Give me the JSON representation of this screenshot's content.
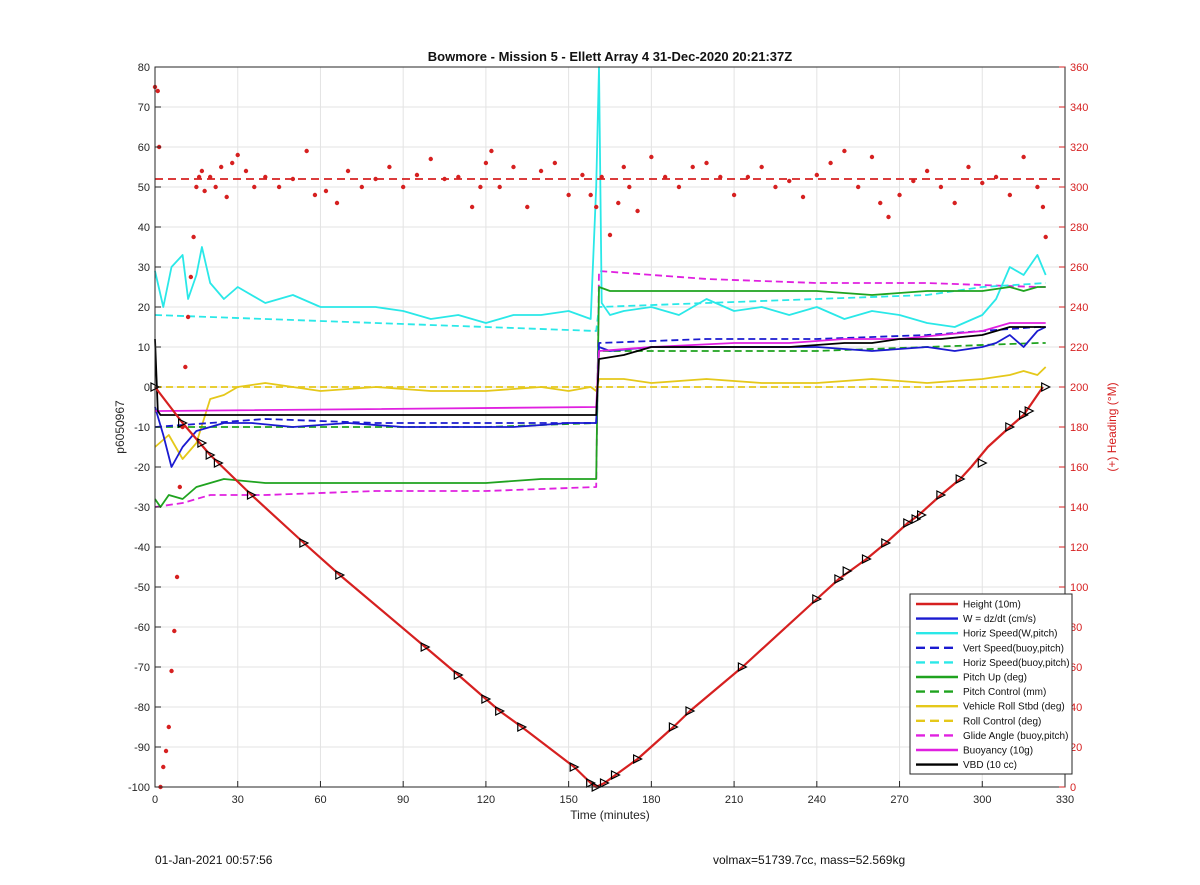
{
  "footer": {
    "timestamp": "01-Jan-2021 00:57:56",
    "vol_mass": "volmax=51739.7cc, mass=52.569kg"
  },
  "chart_data": {
    "type": "line",
    "title": "Bowmore - Mission 5 - Ellett Array 4 31-Dec-2020 20:21:37Z",
    "xlabel": "Time (minutes)",
    "ylabel": "p6050967",
    "y2label": "(+) Heading (°M)",
    "xlim": [
      0,
      330
    ],
    "ylim": [
      -100,
      80
    ],
    "y2lim": [
      0,
      360
    ],
    "xticks": [
      "0",
      "30",
      "60",
      "90",
      "120",
      "150",
      "180",
      "210",
      "240",
      "270",
      "300",
      "330"
    ],
    "yticks": [
      "80",
      "70",
      "60",
      "50",
      "40",
      "30",
      "20",
      "10",
      "0",
      "-10",
      "-20",
      "-30",
      "-40",
      "-50",
      "-60",
      "-70",
      "-80",
      "-90",
      "-100"
    ],
    "y2ticks": [
      "360",
      "340",
      "320",
      "300",
      "280",
      "260",
      "240",
      "220",
      "200",
      "180",
      "160",
      "140",
      "120",
      "100",
      "80",
      "60",
      "40",
      "20",
      "0"
    ],
    "grid": true,
    "legend_position": "bottom-right",
    "colors": {
      "red": "#d62020",
      "blue": "#1a1ad0",
      "cyan": "#2ae8e8",
      "green": "#1fa31f",
      "yellow": "#e5c81a",
      "magenta": "#e020e0",
      "black": "#000000"
    },
    "series": [
      {
        "name": "Height (10m)",
        "color": "#d62020",
        "style": "solid",
        "x": [
          0,
          10,
          20,
          35,
          54,
          67,
          98,
          110,
          120,
          125,
          133,
          152,
          158,
          160,
          163,
          167,
          175,
          188,
          194,
          213,
          240,
          248,
          258,
          265,
          273,
          277,
          285,
          292,
          296,
          302,
          310,
          315,
          318,
          322
        ],
        "y": [
          0,
          -9,
          -17,
          -27,
          -39,
          -47,
          -65,
          -72,
          -78,
          -81,
          -85,
          -95,
          -99,
          -100,
          -99,
          -97,
          -93,
          -85,
          -81,
          -70,
          -53,
          -48,
          -43,
          -39,
          -34,
          -32,
          -27,
          -23,
          -20,
          -15,
          -10,
          -7,
          -4,
          0
        ]
      },
      {
        "name": "W = dz/dt (cm/s)",
        "color": "#1a1ad0",
        "style": "solid",
        "x": [
          0,
          3,
          6,
          10,
          15,
          20,
          25,
          35,
          50,
          70,
          90,
          110,
          130,
          150,
          160,
          161,
          165,
          180,
          200,
          220,
          240,
          260,
          280,
          290,
          300,
          305,
          310,
          315,
          320,
          323
        ],
        "y": [
          -5,
          -12,
          -20,
          -15,
          -11,
          -10,
          -9,
          -9,
          -10,
          -9,
          -10,
          -10,
          -10,
          -9,
          -9,
          10,
          9,
          10,
          10,
          10,
          10,
          9,
          10,
          9,
          10,
          11,
          13,
          10,
          14,
          15
        ]
      },
      {
        "name": "Horiz Speed(W,pitch)",
        "color": "#2ae8e8",
        "style": "solid",
        "x": [
          0,
          3,
          6,
          10,
          12,
          15,
          17,
          20,
          25,
          30,
          40,
          50,
          60,
          70,
          80,
          90,
          100,
          110,
          120,
          130,
          140,
          150,
          158,
          160,
          161,
          162,
          165,
          170,
          180,
          190,
          200,
          210,
          220,
          230,
          240,
          250,
          260,
          270,
          280,
          290,
          300,
          305,
          310,
          315,
          320,
          323
        ],
        "y": [
          29,
          20,
          30,
          33,
          22,
          28,
          35,
          26,
          22,
          25,
          21,
          23,
          20,
          20,
          20,
          19,
          17,
          18,
          16,
          18,
          18,
          19,
          17,
          50,
          80,
          21,
          18,
          19,
          20,
          18,
          22,
          19,
          20,
          18,
          20,
          17,
          19,
          18,
          16,
          15,
          18,
          22,
          30,
          28,
          33,
          28
        ]
      },
      {
        "name": "Vert Speed(buoy,pitch)",
        "color": "#1a1ad0",
        "style": "dashed",
        "x": [
          0,
          20,
          40,
          80,
          120,
          160,
          161,
          200,
          240,
          280,
          320,
          323
        ],
        "y": [
          -10,
          -9,
          -8,
          -9,
          -9,
          -9,
          11,
          12,
          12,
          13,
          15,
          15
        ]
      },
      {
        "name": "Horiz Speed(buoy,pitch)",
        "color": "#2ae8e8",
        "style": "dashed",
        "x": [
          0,
          40,
          80,
          120,
          160,
          161,
          200,
          240,
          280,
          300,
          323
        ],
        "y": [
          18,
          17,
          16,
          15,
          14,
          20,
          21,
          22,
          23,
          25,
          26
        ]
      },
      {
        "name": "Pitch Up (deg)",
        "color": "#1fa31f",
        "style": "solid",
        "x": [
          0,
          2,
          5,
          10,
          15,
          20,
          25,
          40,
          60,
          80,
          100,
          120,
          140,
          160,
          161,
          165,
          180,
          200,
          220,
          240,
          260,
          280,
          300,
          310,
          315,
          320,
          323
        ],
        "y": [
          -28,
          -30,
          -27,
          -28,
          -25,
          -24,
          -23,
          -24,
          -24,
          -24,
          -24,
          -24,
          -23,
          -23,
          25,
          24,
          24,
          24,
          24,
          24,
          23,
          24,
          24,
          25,
          24,
          25,
          25
        ]
      },
      {
        "name": "Pitch Control (mm)",
        "color": "#1fa31f",
        "style": "dashed",
        "x": [
          0,
          20,
          60,
          120,
          160,
          161,
          200,
          240,
          280,
          320,
          323
        ],
        "y": [
          -10,
          -10,
          -10,
          -10,
          -9,
          9,
          9,
          9,
          10,
          11,
          11
        ]
      },
      {
        "name": "Vehicle Roll Stbd (deg)",
        "color": "#e5c81a",
        "style": "solid",
        "x": [
          0,
          5,
          10,
          15,
          20,
          25,
          30,
          40,
          60,
          80,
          100,
          120,
          140,
          150,
          158,
          160,
          161,
          170,
          180,
          200,
          220,
          240,
          260,
          280,
          300,
          310,
          315,
          320,
          323
        ],
        "y": [
          -15,
          -12,
          -18,
          -14,
          -3,
          -2,
          0,
          1,
          -1,
          0,
          -1,
          -1,
          0,
          -1,
          0,
          -1,
          2,
          2,
          1,
          2,
          1,
          1,
          2,
          1,
          2,
          3,
          4,
          3,
          5
        ]
      },
      {
        "name": "Roll Control (deg)",
        "color": "#e5c81a",
        "style": "dashed",
        "x": [
          0,
          160,
          161,
          323
        ],
        "y": [
          0,
          0,
          0,
          0
        ]
      },
      {
        "name": "Glide Angle (buoy,pitch)",
        "color": "#e020e0",
        "style": "dashed",
        "x": [
          0,
          10,
          20,
          40,
          80,
          120,
          160,
          161,
          200,
          240,
          280,
          320,
          323
        ],
        "y": [
          -30,
          -29,
          -27,
          -27,
          -26,
          -26,
          -25,
          29,
          27,
          26,
          26,
          25,
          25
        ]
      },
      {
        "name": "Buoyancy (10g)",
        "color": "#e020e0",
        "style": "solid",
        "x": [
          0,
          1,
          2,
          160,
          161,
          180,
          210,
          230,
          250,
          260,
          270,
          285,
          300,
          305,
          310,
          323
        ],
        "y": [
          -6,
          -6,
          -6,
          -5,
          9,
          10,
          11,
          11,
          12,
          12,
          12,
          13,
          14,
          15,
          16,
          16
        ]
      },
      {
        "name": "VBD (10 cc)",
        "color": "#000000",
        "style": "solid",
        "x": [
          0,
          1,
          2,
          160,
          161,
          170,
          175,
          180,
          210,
          230,
          250,
          260,
          270,
          285,
          300,
          305,
          310,
          323
        ],
        "y": [
          12,
          -6,
          -7,
          -7,
          7,
          8,
          9,
          10,
          10,
          10,
          11,
          11,
          12,
          12,
          13,
          14,
          15,
          15
        ]
      }
    ],
    "heading": {
      "color": "#d62020",
      "style": "points",
      "mean_heading_deg": 304,
      "x": [
        0,
        1,
        1.5,
        2,
        3,
        4,
        5,
        6,
        7,
        8,
        9,
        10,
        11,
        12,
        13,
        14,
        15,
        16,
        17,
        18,
        20,
        22,
        24,
        26,
        28,
        30,
        33,
        36,
        40,
        45,
        50,
        55,
        58,
        62,
        66,
        70,
        75,
        80,
        85,
        90,
        95,
        100,
        105,
        110,
        115,
        118,
        120,
        122,
        125,
        130,
        135,
        140,
        145,
        150,
        155,
        158,
        160,
        162,
        165,
        168,
        170,
        172,
        175,
        180,
        185,
        190,
        195,
        200,
        205,
        210,
        215,
        220,
        225,
        230,
        235,
        240,
        245,
        250,
        255,
        260,
        263,
        266,
        270,
        275,
        280,
        285,
        290,
        295,
        300,
        305,
        310,
        315,
        320,
        322,
        323
      ],
      "y": [
        350,
        348,
        320,
        0,
        10,
        18,
        30,
        58,
        78,
        105,
        150,
        180,
        210,
        235,
        255,
        275,
        300,
        305,
        308,
        298,
        305,
        300,
        310,
        295,
        312,
        316,
        308,
        300,
        305,
        300,
        304,
        318,
        296,
        298,
        292,
        308,
        300,
        304,
        310,
        300,
        306,
        314,
        304,
        305,
        290,
        300,
        312,
        318,
        300,
        310,
        290,
        308,
        312,
        296,
        306,
        296,
        290,
        305,
        276,
        292,
        310,
        300,
        288,
        315,
        305,
        300,
        310,
        312,
        305,
        296,
        305,
        310,
        300,
        303,
        295,
        306,
        312,
        318,
        300,
        315,
        292,
        285,
        296,
        303,
        308,
        300,
        292,
        310,
        302,
        305,
        296,
        315,
        300,
        290,
        275
      ]
    },
    "markers": {
      "color": "#000000",
      "style": "triangle",
      "x": [
        0,
        10,
        17,
        20,
        23,
        35,
        54,
        67,
        98,
        110,
        120,
        125,
        133,
        152,
        158,
        160,
        163,
        167,
        175,
        188,
        194,
        213,
        240,
        248,
        251,
        258,
        265,
        273,
        276,
        278,
        285,
        292,
        300,
        310,
        315,
        317,
        323
      ],
      "y": [
        0,
        -9,
        -14,
        -17,
        -19,
        -27,
        -39,
        -47,
        -65,
        -72,
        -78,
        -81,
        -85,
        -95,
        -99,
        -100,
        -99,
        -97,
        -93,
        -85,
        -81,
        -70,
        -53,
        -48,
        -46,
        -43,
        -39,
        -34,
        -33,
        -32,
        -27,
        -23,
        -19,
        -10,
        -7,
        -6,
        0
      ]
    }
  }
}
